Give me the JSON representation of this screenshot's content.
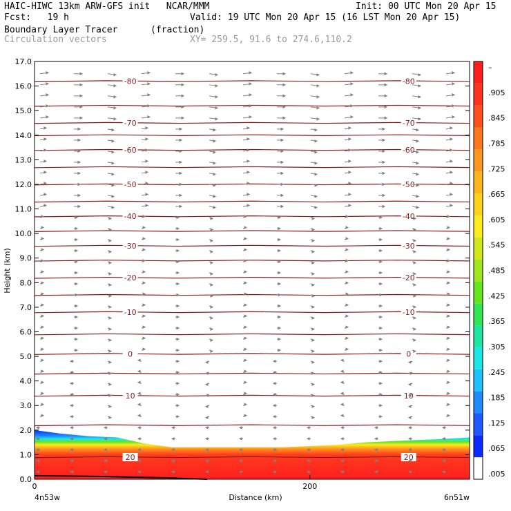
{
  "header": {
    "title_left": "HAIC-HIWC 13km ARW-GFS init   NCAR/MMM",
    "init": "Init: 00 UTC Mon 20 Apr 15",
    "fcst": "Fcst:   19 h",
    "valid": "Valid: 19 UTC Mon 20 Apr 15 (16 LST Mon 20 Apr 15)",
    "field": "Boundary Layer Tracer",
    "field_units": "(fraction)",
    "vectors": "Circulation vectors",
    "xy": "XY= 259.5, 91.6 to 274.6,110.2"
  },
  "colors": {
    "contour": "#8b1a1a",
    "vector": "#808080",
    "colorbar": [
      "#ffffff",
      "#0a2aff",
      "#1e5aff",
      "#1e8cff",
      "#1ec0ff",
      "#1ee6e6",
      "#1ee6a0",
      "#32e650",
      "#64e61e",
      "#a0e61e",
      "#d2e61e",
      "#ffeb1e",
      "#ffd21e",
      "#ffb41e",
      "#ff961e",
      "#ff781e",
      "#ff501e",
      "#ff321e",
      "#ff1e1e"
    ]
  },
  "chart_data": {
    "type": "heatmap",
    "title": "Boundary Layer Tracer (fraction)",
    "xlabel": "Distance (km)",
    "ylabel": "Height (km)",
    "xlim": [
      0,
      316
    ],
    "ylim": [
      0,
      17
    ],
    "x_ticks": [
      "0",
      "200"
    ],
    "x_tick_values": [
      0,
      200
    ],
    "x_endpoints": {
      "left": "4n53w",
      "right": "6n51w"
    },
    "y_ticks": [
      "0.0",
      "1.0",
      "2.0",
      "3.0",
      "4.0",
      "5.0",
      "6.0",
      "7.0",
      "8.0",
      "9.0",
      "10.0",
      "11.0",
      "12.0",
      "13.0",
      "14.0",
      "15.0",
      "16.0",
      "17.0"
    ],
    "colorbar_labels": [
      ".005",
      ".065",
      ".125",
      ".185",
      ".245",
      ".305",
      ".365",
      ".425",
      ".485",
      ".545",
      ".605",
      ".665",
      ".725",
      ".785",
      ".845",
      ".905",
      "–"
    ],
    "boundary_layer_top_km": {
      "x": [
        0,
        20,
        40,
        60,
        80,
        100,
        120,
        140,
        160,
        180,
        200,
        220,
        240,
        260,
        280,
        300,
        316
      ],
      "height": [
        2.0,
        1.85,
        1.75,
        1.7,
        1.45,
        1.3,
        1.3,
        1.3,
        1.3,
        1.3,
        1.35,
        1.4,
        1.5,
        1.55,
        1.6,
        1.65,
        1.7
      ]
    },
    "isotherms_c": [
      {
        "label": "-80",
        "height": 16.2
      },
      {
        "label": "",
        "height": 15.2
      },
      {
        "label": "-70",
        "height": 14.5
      },
      {
        "label": "",
        "height": 14.0
      },
      {
        "label": "-60",
        "height": 13.4
      },
      {
        "label": "",
        "height": 12.7
      },
      {
        "label": "-50",
        "height": 12.0
      },
      {
        "label": "",
        "height": 11.3
      },
      {
        "label": "-40",
        "height": 10.7
      },
      {
        "label": "",
        "height": 10.1
      },
      {
        "label": "-30",
        "height": 9.5
      },
      {
        "label": "",
        "height": 8.9
      },
      {
        "label": "-20",
        "height": 8.2
      },
      {
        "label": "",
        "height": 7.5
      },
      {
        "label": "-10",
        "height": 6.8
      },
      {
        "label": "",
        "height": 5.9
      },
      {
        "label": "0",
        "height": 5.1
      },
      {
        "label": "",
        "height": 4.3
      },
      {
        "label": "10",
        "height": 3.4
      },
      {
        "label": "",
        "height": 2.2
      },
      {
        "label": "20",
        "height": 0.9
      }
    ],
    "grid": false,
    "legend": "right"
  }
}
